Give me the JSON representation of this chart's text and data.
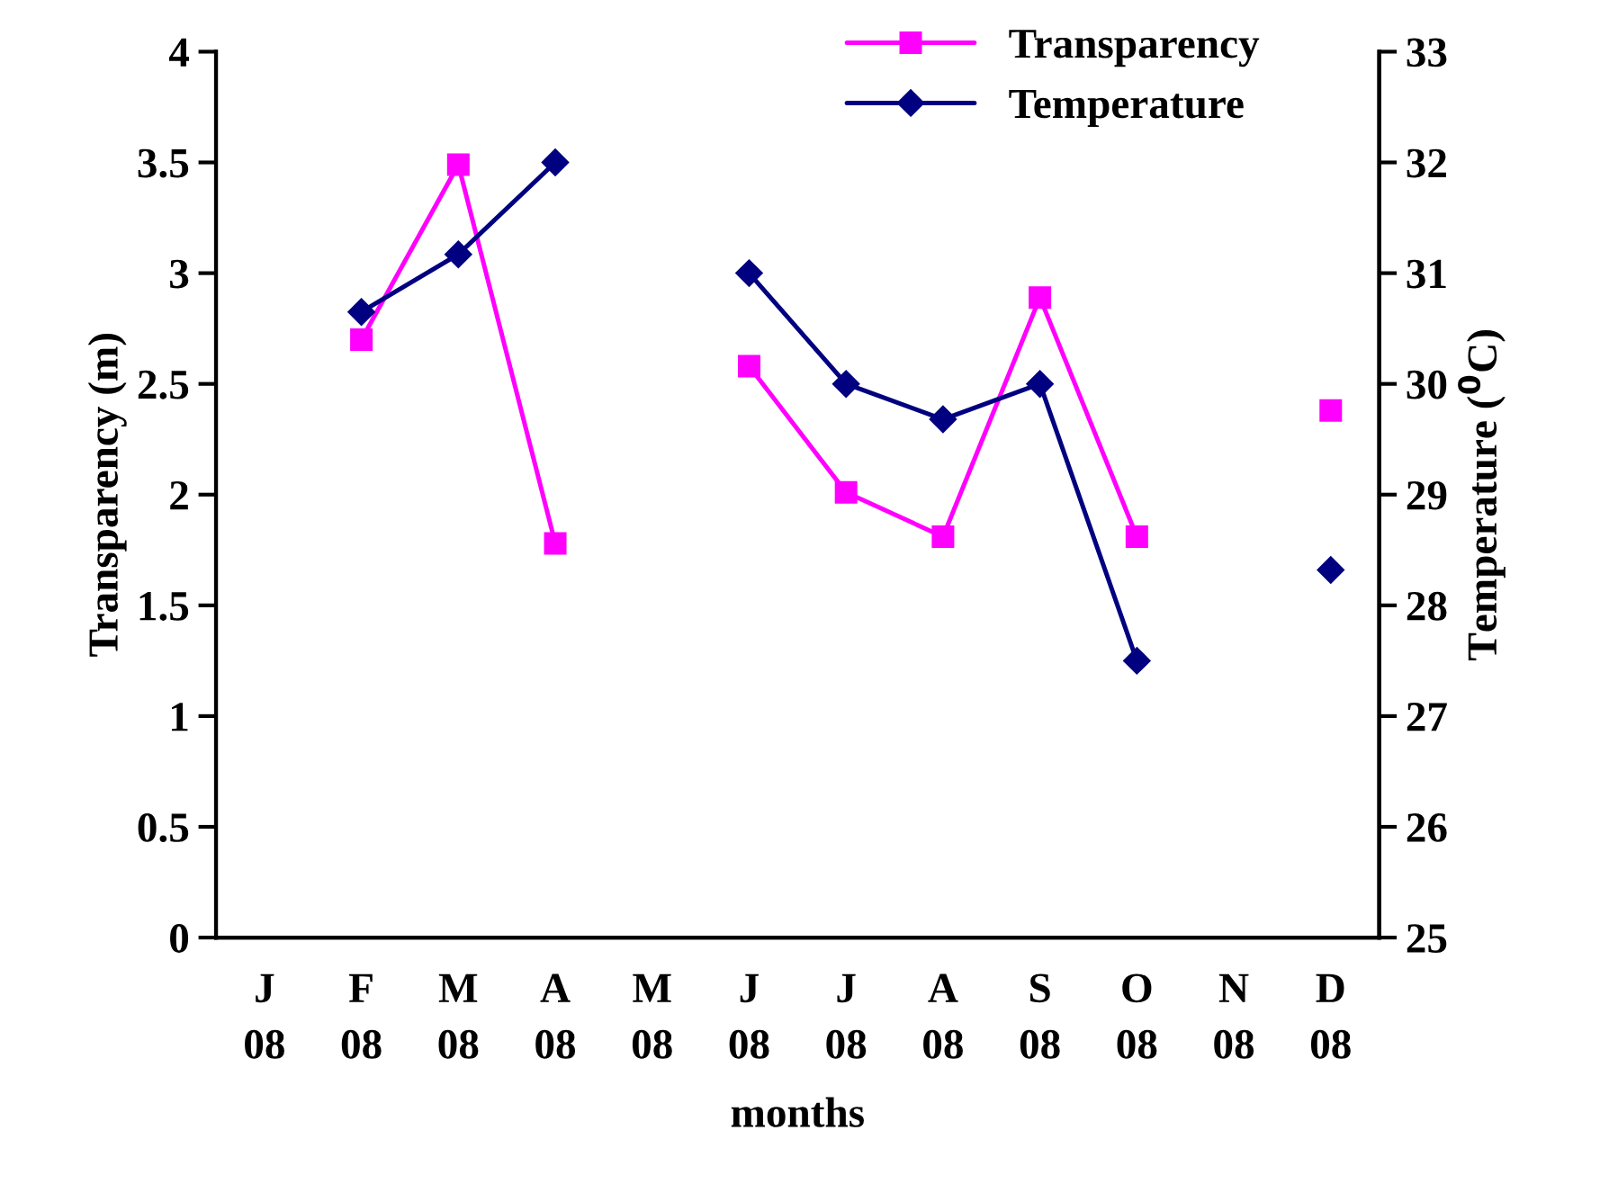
{
  "chart_data": {
    "type": "line",
    "xlabel": "months",
    "ylabel": "Transparency (m)",
    "y2label": "Temperature ($^{0}$C)",
    "categories": [
      "J\n08",
      "F\n08",
      "M\n08",
      "A\n08",
      "M\n08",
      "J\n08",
      "J\n08",
      "A\n08",
      "S\n08",
      "O\n08",
      "N\n08",
      "D\n08"
    ],
    "series": [
      {
        "name": "Transparency",
        "color": "#ff00ff",
        "marker": "square",
        "values": [
          null,
          2.7,
          3.49,
          1.78,
          null,
          2.58,
          2.01,
          1.81,
          2.89,
          1.81,
          null,
          2.38
        ]
      },
      {
        "name": "Temperature",
        "color": "#000080",
        "marker": "diamond",
        "axis": "y2",
        "values": [
          null,
          30.65,
          31.17,
          32.0,
          null,
          31.0,
          30.0,
          29.68,
          30.0,
          27.5,
          null,
          28.32
        ]
      }
    ],
    "ylim": [
      0,
      4
    ],
    "yticks": [
      0,
      0.5,
      1,
      1.5,
      2,
      2.5,
      3,
      3.5,
      4
    ],
    "y2lim": [
      25,
      33
    ],
    "y2ticks": [
      25,
      26,
      27,
      28,
      29,
      30,
      31,
      32,
      33
    ],
    "legend": "top right",
    "grid": false,
    "line_style": "solid"
  }
}
